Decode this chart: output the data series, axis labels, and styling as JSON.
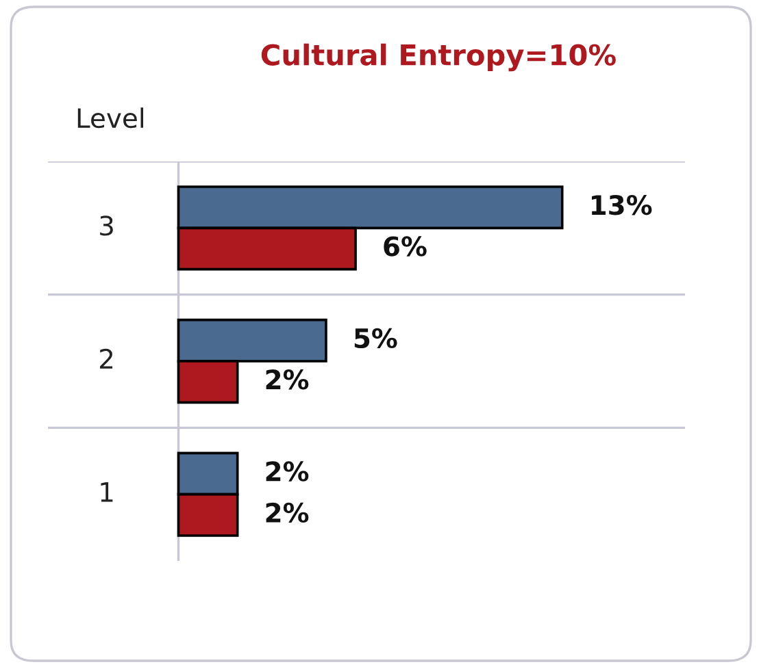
{
  "chart_data": {
    "type": "bar",
    "orientation": "horizontal",
    "title": "Cultural Entropy=10%",
    "ylabel": "Level",
    "categories": [
      "3",
      "2",
      "1"
    ],
    "series": [
      {
        "color": "#4a6a8f",
        "values": [
          13,
          5,
          2
        ],
        "value_labels": [
          "13%",
          "5%",
          "2%"
        ]
      },
      {
        "color": "#ad191e",
        "values": [
          6,
          2,
          2
        ],
        "value_labels": [
          "6%",
          "2%",
          "2%"
        ]
      }
    ],
    "grid": "y",
    "tick_labels": "y"
  }
}
